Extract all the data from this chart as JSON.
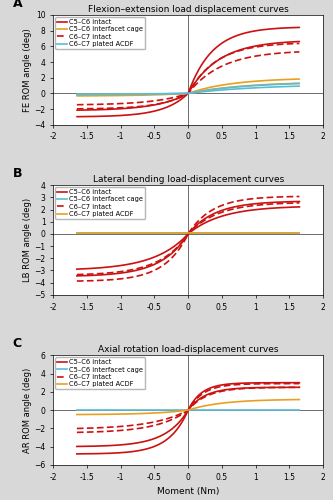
{
  "fig_width": 3.33,
  "fig_height": 5.0,
  "dpi": 100,
  "bg_color": "#d8d8d8",
  "panels": [
    {
      "label": "A",
      "title": "Flexion–extension load displacement curves",
      "ylabel": "FE ROM angle (deg)",
      "ylim": [
        -4,
        10
      ],
      "yticks": [
        -4,
        -2,
        0,
        2,
        4,
        6,
        8,
        10
      ],
      "xlim": [
        -2,
        2
      ],
      "xticks": [
        -2,
        -1.5,
        -1,
        -0.5,
        0,
        0.5,
        1,
        1.5,
        2
      ],
      "legend_entries": [
        {
          "label": "C5–C6 intact",
          "color": "#cc1111",
          "linestyle": "solid"
        },
        {
          "label": "C5–C6 interfacet cage",
          "color": "#e8a020",
          "linestyle": "solid"
        },
        {
          "label": "C6–C7 intact",
          "color": "#cc1111",
          "linestyle": "dashed"
        },
        {
          "label": "C6–C7 plated ACDF",
          "color": "#5bbcd6",
          "linestyle": "solid"
        }
      ]
    },
    {
      "label": "B",
      "title": "Lateral bending load-displacement curves",
      "ylabel": "LB ROM angle (deg)",
      "ylim": [
        -5,
        4
      ],
      "yticks": [
        -5,
        -4,
        -3,
        -2,
        -1,
        0,
        1,
        2,
        3,
        4
      ],
      "xlim": [
        -2,
        2
      ],
      "xticks": [
        -2,
        -1.5,
        -1,
        -0.5,
        0,
        0.5,
        1,
        1.5,
        2
      ],
      "legend_entries": [
        {
          "label": "C5–C6 intact",
          "color": "#cc1111",
          "linestyle": "solid"
        },
        {
          "label": "C5–C6 interfacet cage",
          "color": "#5bbcd6",
          "linestyle": "solid"
        },
        {
          "label": "C6–C7 intact",
          "color": "#cc1111",
          "linestyle": "dashed"
        },
        {
          "label": "C6–C7 plated ACDF",
          "color": "#e8a020",
          "linestyle": "solid"
        }
      ]
    },
    {
      "label": "C",
      "title": "Axial rotation load-displacement curves",
      "ylabel": "AR ROM angle (deg)",
      "ylim": [
        -6,
        6
      ],
      "yticks": [
        -6,
        -4,
        -2,
        0,
        2,
        4,
        6
      ],
      "xlim": [
        -2,
        2
      ],
      "xticks": [
        -2,
        -1.5,
        -1,
        -0.5,
        0,
        0.5,
        1,
        1.5,
        2
      ],
      "legend_entries": [
        {
          "label": "C5–C6 intact",
          "color": "#cc1111",
          "linestyle": "solid"
        },
        {
          "label": "C5–C6 interfacet cage",
          "color": "#5bbcd6",
          "linestyle": "solid"
        },
        {
          "label": "C6–C7 intact",
          "color": "#cc1111",
          "linestyle": "dashed"
        },
        {
          "label": "C6–C7 plated ACDF",
          "color": "#e8a020",
          "linestyle": "solid"
        }
      ]
    }
  ]
}
